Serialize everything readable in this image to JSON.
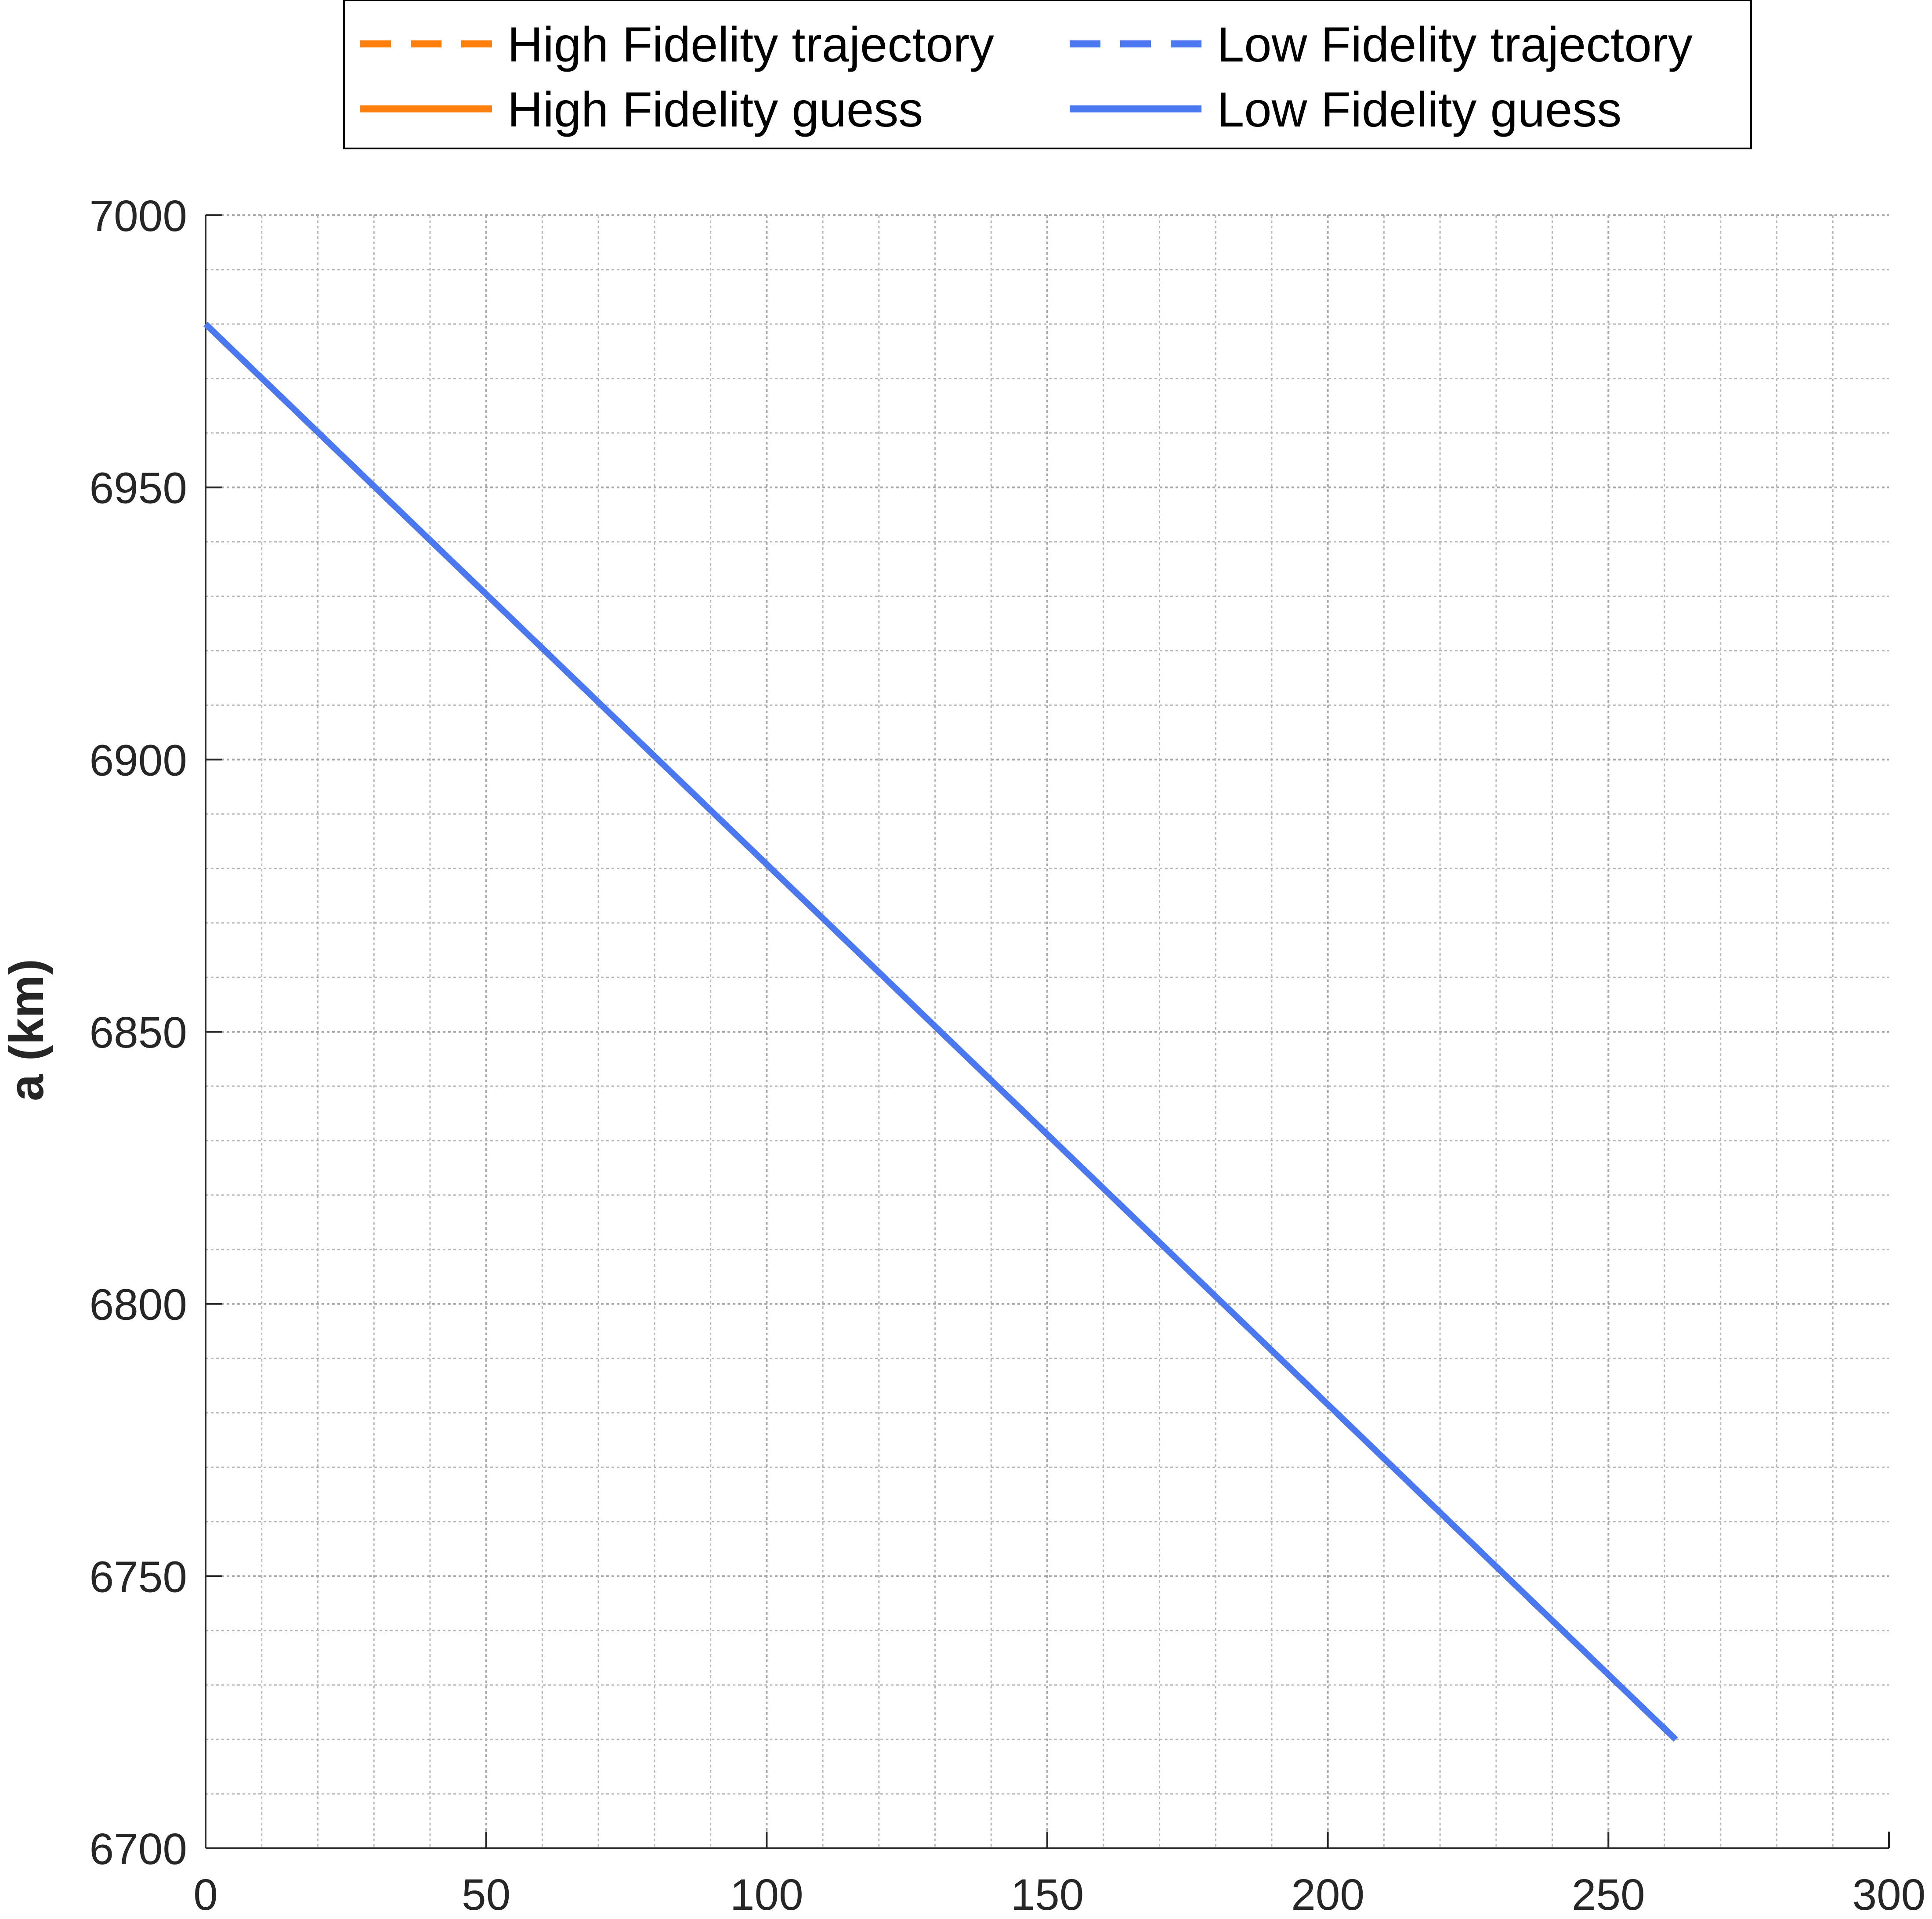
{
  "chart_data": {
    "type": "line",
    "title": "",
    "xlabel": "",
    "ylabel": "a (km)",
    "xlim": [
      0,
      300
    ],
    "ylim": [
      6700,
      7000
    ],
    "xticks": [
      "0",
      "50",
      "100",
      "150",
      "200",
      "250",
      "300"
    ],
    "yticks": [
      "6700",
      "6750",
      "6800",
      "6850",
      "6900",
      "6950",
      "7000"
    ],
    "grid": "major and minor, dotted",
    "legend_position": "top-center, outside plot, 2 columns",
    "series": [
      {
        "name": "High Fidelity trajectory",
        "color": "#FF7F0E",
        "style": "dashed",
        "x": [
          0,
          262
        ],
        "y": [
          6980,
          6720
        ]
      },
      {
        "name": "Low Fidelity trajectory",
        "color": "#4A78F0",
        "style": "dashed",
        "x": [
          0,
          262
        ],
        "y": [
          6980,
          6720
        ]
      },
      {
        "name": "High Fidelity guess",
        "color": "#FF7F0E",
        "style": "solid",
        "x": [
          0,
          262
        ],
        "y": [
          6980,
          6720
        ]
      },
      {
        "name": "Low Fidelity guess",
        "color": "#4A78F0",
        "style": "solid",
        "x": [
          0,
          262
        ],
        "y": [
          6980,
          6720
        ]
      }
    ]
  }
}
